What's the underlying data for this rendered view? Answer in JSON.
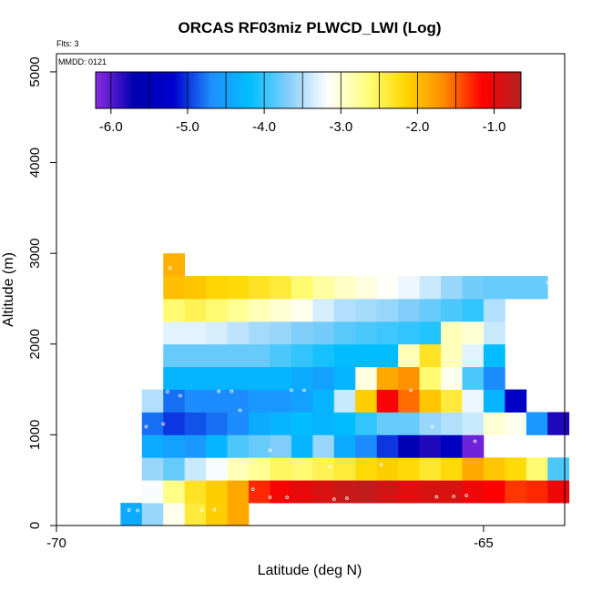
{
  "chart_data": {
    "type": "heatmap",
    "title": "ORCAS RF03miz PLWCD_LWI (Log)",
    "flights_label": "Flts: 3",
    "date_label": "MMDD: 0121",
    "xlabel": "Latitude (deg N)",
    "ylabel": "Altitude (m)",
    "xlim": [
      -70,
      -64.05
    ],
    "ylim": [
      0,
      5200
    ],
    "xticks": [
      -70,
      -65
    ],
    "yticks": [
      0,
      1000,
      2000,
      3000,
      4000,
      5000
    ],
    "cell_width_deg": 0.25,
    "cell_height_m": 250,
    "colorbar": {
      "range": [
        -6.2,
        -0.65
      ],
      "ticks": [
        -6.0,
        -5.0,
        -4.0,
        -3.0,
        -2.0,
        -1.0
      ],
      "tick_labels": [
        "-6.0",
        "-5.0",
        "-4.0",
        "-3.0",
        "-2.0",
        "-1.0"
      ],
      "stops": [
        "#8a2be2",
        "#0000b0",
        "#0000cd",
        "#1e90ff",
        "#00bfff",
        "#87cefa",
        "#ffffff",
        "#ffff80",
        "#ffd700",
        "#ff8c00",
        "#ff0000",
        "#b22222"
      ]
    },
    "rows": [
      {
        "y": 0,
        "x0": -69.25,
        "values": [
          -4.4,
          -3.6,
          -3.1,
          -2.4,
          -2.1,
          -1.85
        ]
      },
      {
        "y": 250,
        "x0": -69.0,
        "values": [
          -3.2,
          -2.7,
          -2.3,
          -2.1,
          -1.85,
          -1.3,
          -1.1,
          -1.0,
          -0.9,
          -0.8,
          -0.75,
          -0.85,
          -0.95,
          -0.9,
          -0.9,
          -1.05,
          -1.15,
          -1.35,
          -1.3,
          -1.05
        ]
      },
      {
        "y": 500,
        "x0": -69.0,
        "values": [
          -3.6,
          -3.8,
          -3.4,
          -3.2,
          -2.9,
          -2.75,
          -2.55,
          -2.6,
          -2.5,
          -2.4,
          -2.2,
          -2.1,
          -2.2,
          -2.35,
          -2.2,
          -1.85,
          -2.05,
          -2.2,
          -2.6,
          -3.9
        ]
      },
      {
        "y": 750,
        "x0": -69.0,
        "values": [
          -4.4,
          -4.5,
          -4.6,
          -4.3,
          -3.9,
          -3.8,
          -3.7,
          -4.3,
          -3.6,
          -4.4,
          -4.7,
          -5.0,
          -5.6,
          -5.8,
          -5.4,
          -6.1
        ]
      },
      {
        "y": 1000,
        "x0": -69.0,
        "values": [
          -4.8,
          -5.0,
          -4.9,
          -4.8,
          -4.7,
          -4.4,
          -4.3,
          -4.2,
          -4.3,
          -4.2,
          -4.0,
          -3.8,
          -3.8,
          -3.6,
          -3.5,
          -3.4,
          -3.0,
          -3.1,
          -4.6,
          -5.8
        ]
      },
      {
        "y": 1250,
        "x0": -69.0,
        "values": [
          -3.5,
          -4.8,
          -4.7,
          -4.7,
          -4.7,
          -4.6,
          -4.6,
          -4.5,
          -4.3,
          -3.4,
          -2.1,
          -1.1,
          -1.55,
          -2.05,
          -2.4,
          -3.25,
          -4.3,
          -5.3
        ]
      },
      {
        "y": 1500,
        "x0": -68.75,
        "values": [
          -4.3,
          -4.3,
          -4.3,
          -4.3,
          -4.3,
          -4.3,
          -4.4,
          -4.5,
          -4.3,
          -3.05,
          -1.85,
          -1.7,
          -2.6,
          -3.1,
          -3.9,
          -4.7
        ]
      },
      {
        "y": 1750,
        "x0": -68.75,
        "values": [
          -3.8,
          -3.8,
          -3.8,
          -3.8,
          -3.8,
          -3.9,
          -4.0,
          -4.1,
          -4.2,
          -4.2,
          -4.2,
          -2.9,
          -2.3,
          -2.9,
          -3.3,
          -4.2
        ]
      },
      {
        "y": 2000,
        "x0": -68.75,
        "values": [
          -3.3,
          -3.3,
          -3.35,
          -3.45,
          -3.55,
          -3.6,
          -3.7,
          -3.75,
          -3.85,
          -3.9,
          -3.95,
          -4.0,
          -4.05,
          -2.9,
          -3.0,
          -3.4
        ]
      },
      {
        "y": 2250,
        "x0": -68.75,
        "values": [
          -2.6,
          -2.5,
          -2.6,
          -2.75,
          -2.9,
          -3.0,
          -3.1,
          -3.35,
          -3.5,
          -3.55,
          -3.6,
          -3.7,
          -3.8,
          -3.9,
          -4.0,
          -3.5
        ]
      },
      {
        "y": 2500,
        "x0": -68.75,
        "values": [
          -2.0,
          -2.05,
          -2.15,
          -2.2,
          -2.3,
          -2.4,
          -2.6,
          -2.8,
          -2.95,
          -3.05,
          -3.15,
          -3.25,
          -3.4,
          -3.6,
          -3.75,
          -3.8,
          -3.8,
          -3.8
        ]
      },
      {
        "y": 2750,
        "x0": -68.75,
        "values": [
          -1.9
        ]
      }
    ],
    "sample_points": [
      [
        -69.15,
        170
      ],
      [
        -69.05,
        165
      ],
      [
        -68.6,
        175
      ],
      [
        -68.3,
        170
      ],
      [
        -68.15,
        175
      ],
      [
        -68.95,
        1090
      ],
      [
        -68.75,
        1120
      ],
      [
        -68.7,
        1475
      ],
      [
        -68.55,
        1430
      ],
      [
        -68.1,
        1480
      ],
      [
        -67.95,
        1480
      ],
      [
        -67.85,
        1270
      ],
      [
        -67.25,
        1490
      ],
      [
        -67.1,
        1490
      ],
      [
        -65.85,
        1490
      ],
      [
        -65.6,
        1090
      ],
      [
        -65.1,
        930
      ],
      [
        -67.5,
        830
      ],
      [
        -66.8,
        650
      ],
      [
        -66.2,
        670
      ],
      [
        -68.0,
        680
      ],
      [
        -67.7,
        400
      ],
      [
        -67.5,
        310
      ],
      [
        -67.3,
        310
      ],
      [
        -66.75,
        290
      ],
      [
        -66.6,
        300
      ],
      [
        -65.55,
        315
      ],
      [
        -65.35,
        320
      ],
      [
        -65.2,
        330
      ],
      [
        -68.67,
        2840
      ],
      [
        -64.25,
        2680
      ]
    ]
  }
}
